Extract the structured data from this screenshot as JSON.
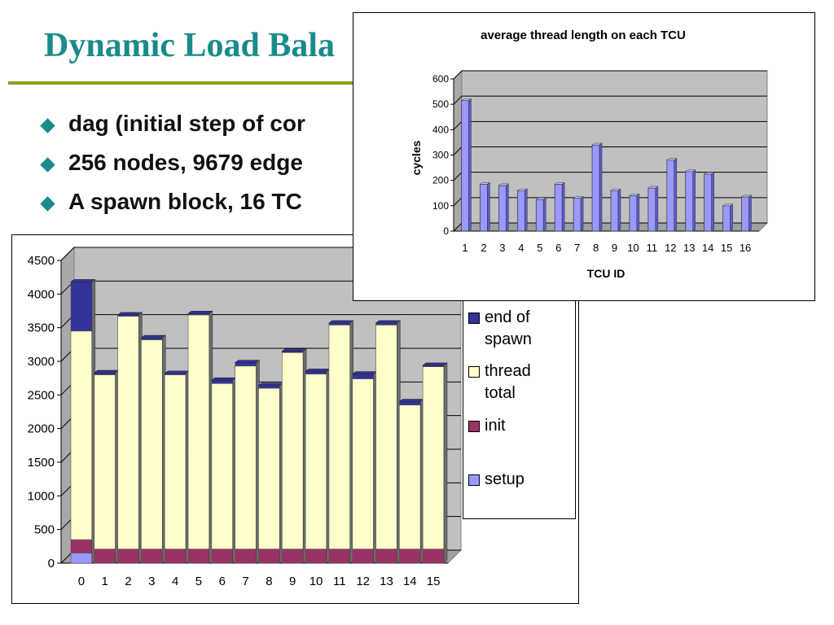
{
  "slide": {
    "title": "Dynamic Load Bala",
    "bullets": [
      "dag (initial step of cor",
      "256 nodes, 9679 edge",
      "A spawn block, 16 TC"
    ]
  },
  "colors": {
    "title": "#1a8a8a",
    "rule": "#8aa31c",
    "setup": "#9999ff",
    "init": "#993366",
    "thread_total": "#ffffcc",
    "end_of_spawn": "#333399",
    "plot_bg": "#c0c0c0",
    "small_bar": "#9999ff"
  },
  "chart_data": [
    {
      "type": "bar",
      "stacked": true,
      "categories": [
        "0",
        "1",
        "2",
        "3",
        "4",
        "5",
        "6",
        "7",
        "8",
        "9",
        "10",
        "11",
        "12",
        "13",
        "14",
        "15"
      ],
      "series": [
        {
          "name": "setup",
          "values": [
            150,
            0,
            0,
            0,
            0,
            0,
            0,
            0,
            0,
            0,
            0,
            0,
            0,
            0,
            0,
            0
          ]
        },
        {
          "name": "init",
          "values": [
            200,
            210,
            210,
            210,
            210,
            210,
            210,
            210,
            210,
            210,
            210,
            210,
            210,
            210,
            210,
            210
          ]
        },
        {
          "name": "thread total",
          "values": [
            3100,
            2590,
            3460,
            3110,
            2590,
            3480,
            2460,
            2720,
            2390,
            2920,
            2600,
            3330,
            2530,
            3330,
            2140,
            2710
          ]
        },
        {
          "name": "end of spawn",
          "values": [
            730,
            30,
            20,
            30,
            20,
            20,
            50,
            50,
            40,
            20,
            40,
            30,
            70,
            30,
            50,
            20
          ]
        }
      ],
      "yticks": [
        0,
        500,
        1000,
        1500,
        2000,
        2500,
        3000,
        3500,
        4000,
        4500
      ],
      "ylim": [
        0,
        4500
      ],
      "legend_labels": [
        [
          "end of",
          "spawn"
        ],
        [
          "thread",
          "total"
        ],
        [
          "init"
        ],
        [
          "setup"
        ]
      ],
      "legend_position": "right",
      "grid": true
    },
    {
      "type": "bar",
      "title": "average thread length on each TCU",
      "xlabel": "TCU ID",
      "ylabel": "cycles",
      "categories": [
        "1",
        "2",
        "3",
        "4",
        "5",
        "6",
        "7",
        "8",
        "9",
        "10",
        "11",
        "12",
        "13",
        "14",
        "15",
        "16"
      ],
      "values": [
        515,
        185,
        180,
        160,
        125,
        185,
        130,
        340,
        160,
        140,
        170,
        280,
        235,
        225,
        100,
        135
      ],
      "yticks": [
        0,
        100,
        200,
        300,
        400,
        500,
        600
      ],
      "ylim": [
        0,
        600
      ],
      "grid": true
    }
  ]
}
